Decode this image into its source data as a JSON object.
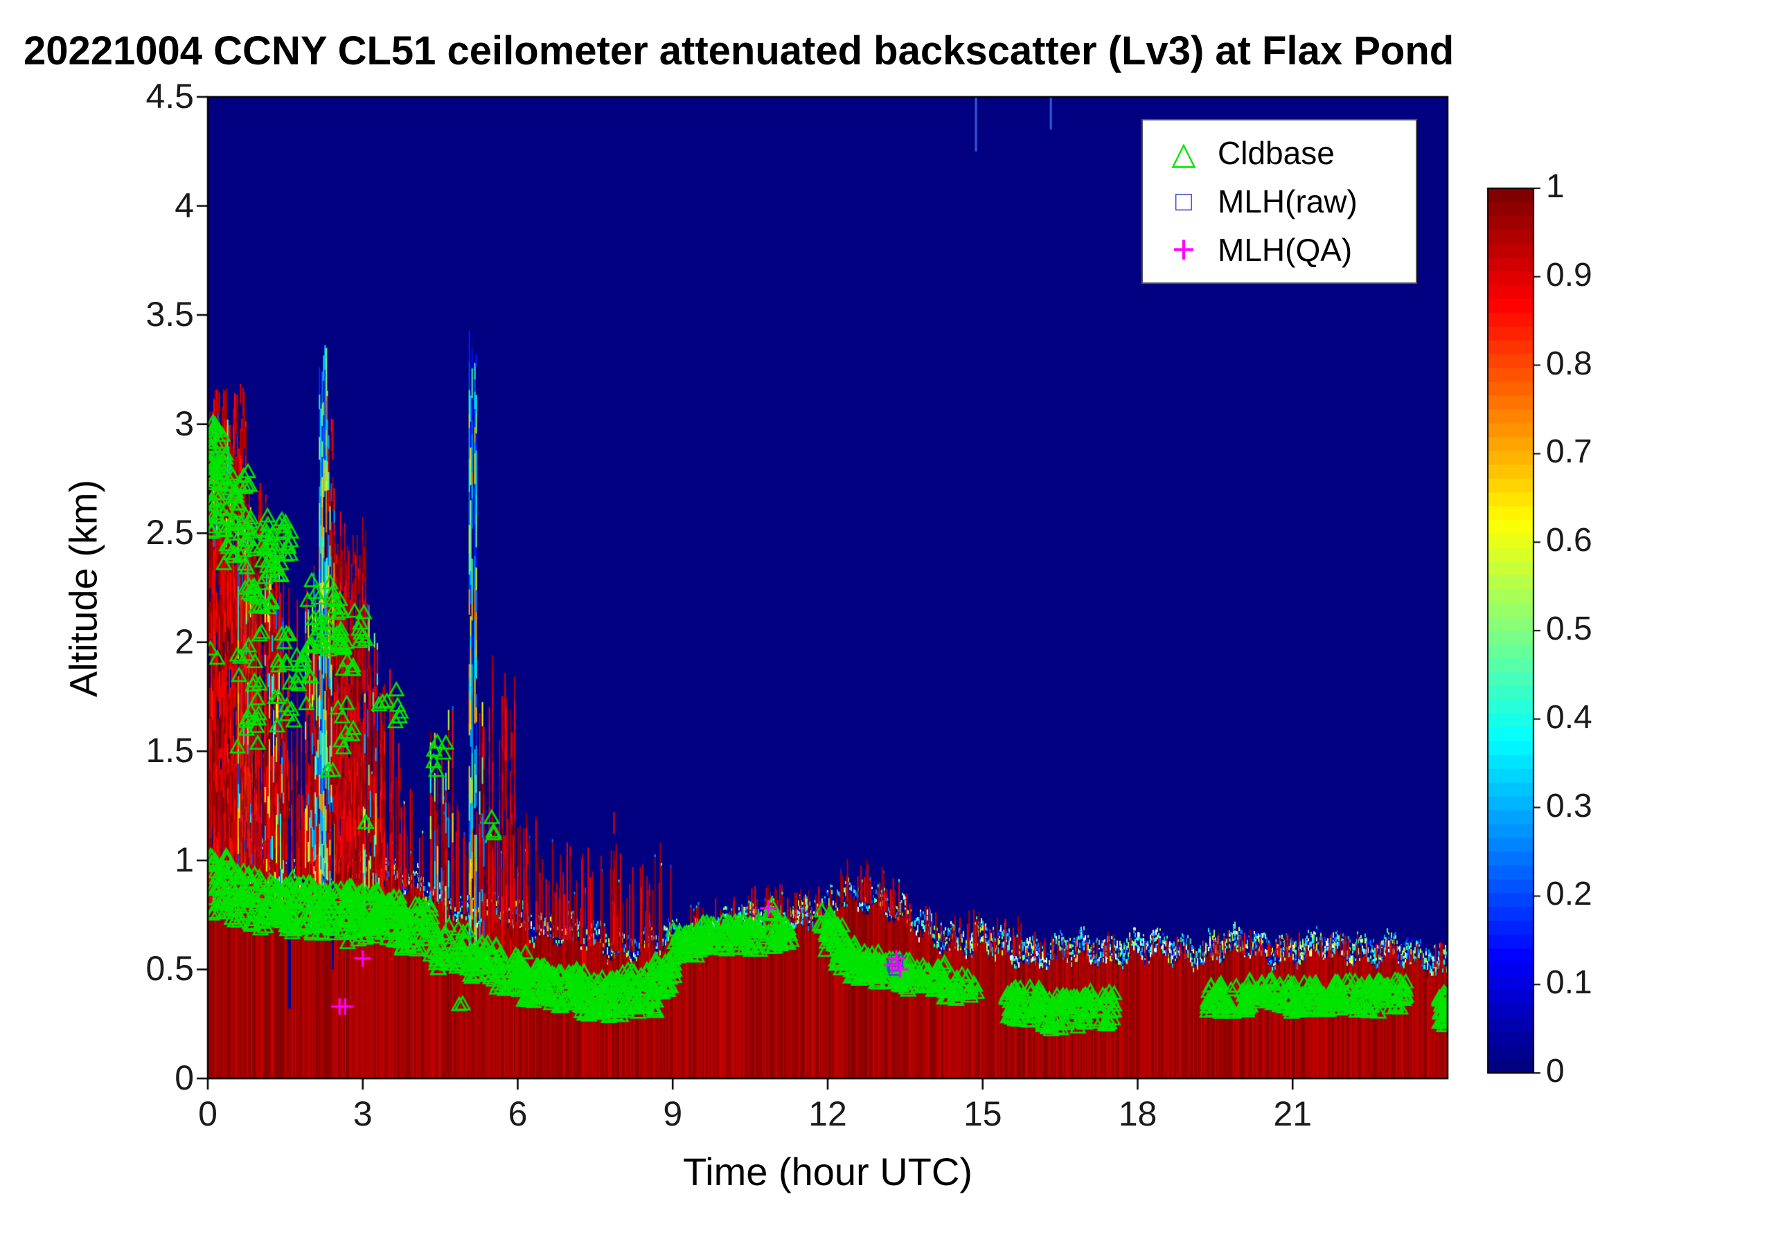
{
  "chart_data": {
    "type": "heatmap",
    "title": "20221004 CCNY CL51 ceilometer attenuated backscatter (Lv3) at Flax Pond",
    "xlabel": "Time (hour UTC)",
    "ylabel": "Altitude (km)",
    "xlim": [
      0,
      24
    ],
    "ylim": [
      0,
      4.5
    ],
    "xticks": [
      0,
      3,
      6,
      9,
      12,
      15,
      18,
      21
    ],
    "yticks": [
      0,
      0.5,
      1,
      1.5,
      2,
      2.5,
      3,
      3.5,
      4,
      4.5
    ],
    "grid": false,
    "legend_position": "top-right-inside",
    "colorbar": {
      "min": 0,
      "max": 1,
      "ticks": [
        0,
        0.1,
        0.2,
        0.3,
        0.4,
        0.5,
        0.6,
        0.7,
        0.8,
        0.9,
        1
      ],
      "colormap": "jet"
    },
    "background_value": 0,
    "legend": [
      {
        "label": "Cldbase",
        "marker": "triangle",
        "glyph": "△",
        "color": "#00e400"
      },
      {
        "label": "MLH(raw)",
        "marker": "square",
        "glyph": "□",
        "color": "#4040dd"
      },
      {
        "label": "MLH(QA)",
        "marker": "plus",
        "glyph": "+",
        "color": "#ff00ff"
      }
    ],
    "boundary_layer_top_km": [
      [
        0,
        0.8
      ],
      [
        0.5,
        0.9
      ],
      [
        1,
        0.95
      ],
      [
        1.5,
        0.95
      ],
      [
        2,
        0.9
      ],
      [
        2.5,
        0.92
      ],
      [
        3,
        0.95
      ],
      [
        3.5,
        0.9
      ],
      [
        4,
        0.85
      ],
      [
        4.5,
        0.8
      ],
      [
        5,
        0.75
      ],
      [
        5.5,
        0.72
      ],
      [
        6,
        0.7
      ],
      [
        6.5,
        0.66
      ],
      [
        7,
        0.63
      ],
      [
        7.5,
        0.6
      ],
      [
        8,
        0.58
      ],
      [
        8.5,
        0.58
      ],
      [
        9,
        0.6
      ],
      [
        9.5,
        0.63
      ],
      [
        10,
        0.66
      ],
      [
        10.5,
        0.68
      ],
      [
        11,
        0.7
      ],
      [
        11.5,
        0.72
      ],
      [
        11.9,
        0.72
      ],
      [
        12.2,
        0.8
      ],
      [
        12.5,
        0.82
      ],
      [
        12.8,
        0.8
      ],
      [
        13.2,
        0.75
      ],
      [
        13.6,
        0.68
      ],
      [
        14,
        0.64
      ],
      [
        14.5,
        0.6
      ],
      [
        15,
        0.58
      ],
      [
        16,
        0.55
      ],
      [
        17,
        0.55
      ],
      [
        18,
        0.56
      ],
      [
        19,
        0.55
      ],
      [
        20,
        0.57
      ],
      [
        21,
        0.55
      ],
      [
        22,
        0.56
      ],
      [
        23,
        0.55
      ],
      [
        23.5,
        0.52
      ],
      [
        24,
        0.5
      ]
    ],
    "cloud_features": [
      [
        0.0,
        0.75,
        0.8,
        2.85,
        3.2,
        1,
        "red"
      ],
      [
        0.05,
        0.45,
        2.6,
        2.9,
        3.15,
        0.8,
        "mix"
      ],
      [
        0.55,
        0.95,
        0.95,
        2.2,
        2.7,
        0.9,
        "cool"
      ],
      [
        0.6,
        1.15,
        0.8,
        2.3,
        2.75,
        0.95,
        "red"
      ],
      [
        1.1,
        1.45,
        0.8,
        2.1,
        2.6,
        0.9,
        "mix"
      ],
      [
        1.45,
        1.8,
        0.8,
        1.5,
        2.3,
        0.6,
        "red"
      ],
      [
        1.8,
        2.15,
        0.75,
        1.9,
        2.35,
        0.8,
        "mix"
      ],
      [
        2.15,
        2.3,
        0.9,
        3.0,
        3.4,
        1,
        "cool"
      ],
      [
        2.3,
        2.45,
        0.9,
        2.6,
        3.3,
        0.9,
        "mix"
      ],
      [
        2.45,
        3.05,
        0.75,
        2.1,
        2.6,
        0.9,
        "red"
      ],
      [
        3.0,
        3.3,
        0.75,
        1.7,
        2.2,
        0.85,
        "mix"
      ],
      [
        3.3,
        3.55,
        0.7,
        1.75,
        1.95,
        0.7,
        "red"
      ],
      [
        3.55,
        3.8,
        0.7,
        1.4,
        1.8,
        0.5,
        "red"
      ],
      [
        4.3,
        4.75,
        0.65,
        1.35,
        1.75,
        0.45,
        "mix"
      ],
      [
        5.05,
        5.2,
        0.6,
        3.1,
        3.45,
        0.9,
        "cool"
      ],
      [
        5.25,
        5.45,
        0.6,
        1.5,
        2.0,
        0.5,
        "mix"
      ],
      [
        5.5,
        5.95,
        0.55,
        1.5,
        2.05,
        0.45,
        "red"
      ],
      [
        6.1,
        6.45,
        0.55,
        0.95,
        1.35,
        0.4,
        "red"
      ],
      [
        7.0,
        7.35,
        0.5,
        0.85,
        1.2,
        0.35,
        "red"
      ],
      [
        7.85,
        7.95,
        0.5,
        1.35,
        1.5,
        0.8,
        "red"
      ],
      [
        8.35,
        8.55,
        0.5,
        0.85,
        1.0,
        0.4,
        "red"
      ]
    ],
    "spike_bands": [
      [
        0,
        3,
        120,
        0.1,
        0.6
      ],
      [
        3,
        9,
        170,
        0.08,
        0.5
      ],
      [
        9,
        16,
        150,
        0.03,
        0.2
      ],
      [
        16,
        24,
        130,
        0.02,
        0.12
      ]
    ],
    "gap_notches": [
      [
        1.55,
        0.06,
        0.32
      ],
      [
        2.4,
        0.03,
        0.5
      ]
    ],
    "top_streaks": [
      [
        14.85,
        4.25
      ],
      [
        16.3,
        4.35
      ]
    ],
    "speckle_boost": [
      [
        9.2,
        11.6,
        4
      ],
      [
        11.9,
        13.2,
        0.8
      ],
      [
        14.5,
        24,
        2
      ],
      [
        0,
        3,
        2
      ]
    ],
    "cldbase_clusters": [
      [
        0.0,
        0.35,
        2.72,
        3.02,
        40
      ],
      [
        0.0,
        0.25,
        2.5,
        2.75,
        14
      ],
      [
        0.05,
        0.2,
        1.9,
        2.0,
        2
      ],
      [
        0.3,
        0.85,
        2.35,
        2.8,
        45
      ],
      [
        0.55,
        1.05,
        1.5,
        2.1,
        22
      ],
      [
        0.7,
        1.25,
        2.15,
        2.55,
        35
      ],
      [
        1.1,
        1.65,
        2.3,
        2.62,
        30
      ],
      [
        1.3,
        2.05,
        1.6,
        2.05,
        28
      ],
      [
        1.9,
        2.65,
        1.95,
        2.3,
        35
      ],
      [
        2.3,
        2.85,
        1.3,
        1.75,
        10
      ],
      [
        2.5,
        3.1,
        1.85,
        2.15,
        18
      ],
      [
        3.05,
        3.15,
        1.12,
        1.2,
        2
      ],
      [
        3.3,
        3.75,
        1.62,
        1.78,
        8
      ],
      [
        4.35,
        4.65,
        1.38,
        1.55,
        6
      ],
      [
        5.45,
        5.6,
        1.1,
        1.2,
        3
      ],
      [
        0.05,
        0.5,
        0.75,
        1.02,
        45
      ],
      [
        0.45,
        1.1,
        0.7,
        0.95,
        55
      ],
      [
        1.0,
        1.7,
        0.68,
        0.92,
        60
      ],
      [
        1.6,
        2.3,
        0.66,
        0.9,
        60
      ],
      [
        2.2,
        2.8,
        0.65,
        0.88,
        55
      ],
      [
        2.7,
        3.3,
        0.62,
        0.86,
        50
      ],
      [
        3.2,
        3.8,
        0.62,
        0.85,
        55
      ],
      [
        3.7,
        4.35,
        0.58,
        0.8,
        55
      ],
      [
        4.3,
        5.05,
        0.5,
        0.7,
        45
      ],
      [
        4.85,
        4.95,
        0.33,
        0.38,
        2
      ],
      [
        5.0,
        5.6,
        0.45,
        0.62,
        45
      ],
      [
        5.5,
        6.2,
        0.4,
        0.58,
        50
      ],
      [
        6.1,
        6.6,
        0.35,
        0.52,
        40
      ],
      [
        6.5,
        7.3,
        0.32,
        0.5,
        70
      ],
      [
        7.2,
        8.0,
        0.28,
        0.46,
        80
      ],
      [
        7.9,
        8.7,
        0.3,
        0.5,
        70
      ],
      [
        8.6,
        9.05,
        0.38,
        0.55,
        40
      ],
      [
        9.0,
        9.6,
        0.55,
        0.68,
        45
      ],
      [
        9.5,
        10.3,
        0.58,
        0.72,
        55
      ],
      [
        10.2,
        11.2,
        0.58,
        0.73,
        65
      ],
      [
        10.8,
        10.95,
        0.74,
        0.8,
        4
      ],
      [
        11.0,
        11.3,
        0.6,
        0.7,
        15
      ],
      [
        11.85,
        12.05,
        0.66,
        0.78,
        12
      ],
      [
        11.95,
        12.3,
        0.58,
        0.72,
        25
      ],
      [
        12.15,
        12.6,
        0.5,
        0.64,
        35
      ],
      [
        12.4,
        13.0,
        0.45,
        0.58,
        45
      ],
      [
        12.9,
        13.6,
        0.42,
        0.55,
        50
      ],
      [
        13.5,
        14.3,
        0.4,
        0.53,
        50
      ],
      [
        14.2,
        14.9,
        0.36,
        0.48,
        35
      ],
      [
        15.45,
        16.2,
        0.26,
        0.42,
        60
      ],
      [
        16.1,
        17.0,
        0.22,
        0.38,
        65
      ],
      [
        16.9,
        17.55,
        0.24,
        0.4,
        45
      ],
      [
        19.3,
        20.2,
        0.3,
        0.44,
        60
      ],
      [
        20.1,
        21.0,
        0.32,
        0.46,
        60
      ],
      [
        20.9,
        21.9,
        0.3,
        0.44,
        65
      ],
      [
        21.8,
        22.7,
        0.3,
        0.45,
        65
      ],
      [
        22.6,
        23.2,
        0.32,
        0.45,
        40
      ],
      [
        23.82,
        24.0,
        0.24,
        0.4,
        30
      ]
    ],
    "mlh_raw_points": [
      [
        13.27,
        0.52
      ],
      [
        13.34,
        0.54
      ],
      [
        13.3,
        0.5
      ]
    ],
    "mlh_qa_points": [
      [
        2.55,
        0.33
      ],
      [
        2.66,
        0.33
      ],
      [
        3.0,
        0.55
      ],
      [
        10.85,
        0.78
      ],
      [
        13.25,
        0.52
      ],
      [
        13.33,
        0.55
      ],
      [
        13.4,
        0.5
      ]
    ]
  }
}
